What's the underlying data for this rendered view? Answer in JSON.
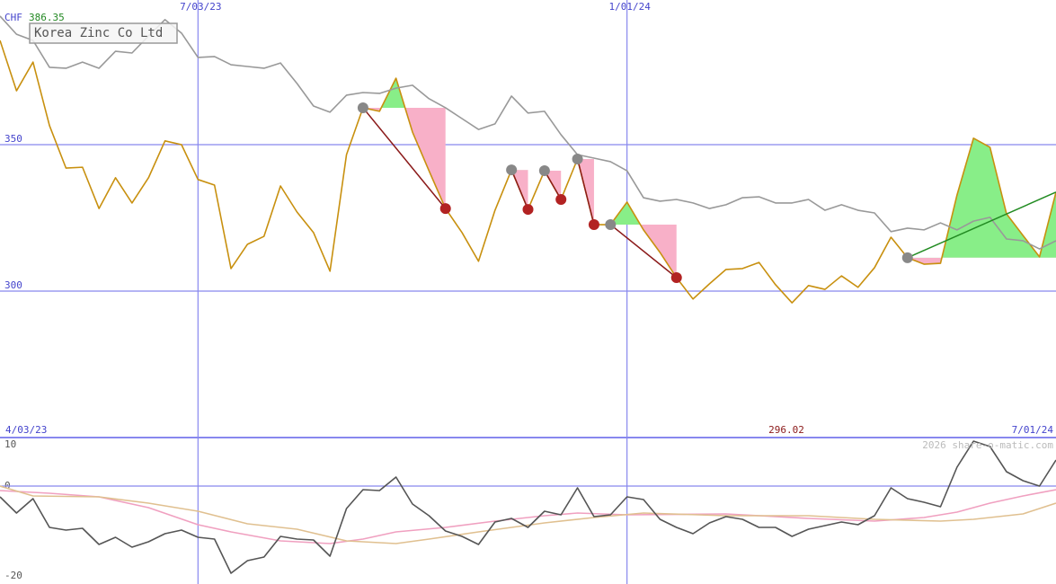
{
  "chart_data": [
    {
      "type": "line",
      "title": "Korea Zinc Co Ltd",
      "currency": "CHF",
      "price_label": 386.35,
      "low_label": 296.02,
      "x": [
        0,
        1,
        2,
        3,
        4,
        5,
        6,
        7,
        8,
        9,
        10,
        11,
        12,
        13,
        14,
        15,
        16,
        17,
        18,
        19,
        20,
        21,
        22,
        23,
        24,
        25,
        26,
        27,
        28,
        29,
        30,
        31,
        32,
        33,
        34,
        35,
        36,
        37,
        38,
        39,
        40,
        41,
        42,
        43,
        44,
        45,
        46,
        47,
        48,
        49,
        50,
        51,
        52,
        53,
        54,
        55,
        56,
        57,
        58,
        59,
        60,
        61,
        62,
        63,
        64
      ],
      "xlim": [
        0,
        64
      ],
      "xticks": [
        {
          "value": 12,
          "label": "7/03/23"
        },
        {
          "value": 38,
          "label": "1/01/24"
        }
      ],
      "ylim": [
        250.0,
        399.4
      ],
      "yticks": [
        300,
        350
      ],
      "grid": true,
      "series": [
        {
          "color": "#c8900f",
          "values": [
            385.6,
            368.4,
            378.2,
            356.5,
            342.0,
            342.3,
            328.2,
            338.7,
            330.1,
            338.7,
            351.3,
            350.0,
            338.1,
            336.2,
            307.7,
            316.0,
            318.7,
            335.9,
            327.0,
            320.0,
            306.8,
            346.6,
            362.6,
            361.4,
            372.7,
            354.3,
            341.1,
            328.2,
            320.0,
            310.2,
            327.6,
            341.4,
            327.9,
            341.1,
            331.3,
            345.1,
            322.7,
            322.7,
            330.4,
            320.9,
            313.2,
            304.6,
            297.3,
            302.5,
            307.4,
            307.7,
            309.8,
            302.2,
            296.0,
            301.9,
            300.6,
            305.2,
            301.3,
            308.0,
            318.4,
            311.4,
            309.2,
            309.5,
            332.8,
            352.2,
            349.1,
            326.4,
            319.0,
            311.7,
            333.8
          ]
        },
        {
          "color": "#999999",
          "values": [
            393.9,
            387.7,
            385.6,
            376.4,
            376.1,
            378.2,
            376.1,
            381.9,
            381.3,
            387.1,
            392.7,
            388.1,
            379.8,
            380.1,
            377.3,
            376.7,
            376.1,
            377.9,
            370.9,
            363.2,
            361.1,
            366.9,
            367.8,
            367.5,
            369.3,
            370.3,
            365.7,
            362.6,
            358.9,
            355.2,
            357.1,
            366.6,
            360.8,
            361.4,
            353.4,
            346.6,
            345.4,
            344.2,
            341.1,
            331.9,
            330.7,
            331.3,
            330.1,
            328.2,
            329.5,
            331.9,
            332.2,
            330.1,
            330.1,
            331.3,
            327.6,
            329.5,
            327.6,
            326.7,
            320.3,
            321.5,
            320.9,
            323.3,
            320.9,
            323.9,
            325.2,
            317.8,
            317.2,
            314.4,
            317.2
          ]
        }
      ],
      "patterns": [
        {
          "start": 22,
          "end": 27,
          "color": "#8b1a1a"
        },
        {
          "start": 31,
          "end": 32,
          "color": "#8b1a1a"
        },
        {
          "start": 33,
          "end": 34,
          "color": "#8b1a1a"
        },
        {
          "start": 35,
          "end": 36,
          "color": "#8b1a1a"
        },
        {
          "start": 37,
          "end": 41,
          "color": "#8b1a1a"
        },
        {
          "start": 55,
          "end": 64,
          "color": "#228b22"
        }
      ]
    },
    {
      "type": "line",
      "watermark": "2026 share-o-matic.com",
      "xlim": [
        0,
        64
      ],
      "xticks": [
        {
          "value": 0,
          "label": "4/03/23"
        },
        {
          "value": 64,
          "label": "7/01/24"
        }
      ],
      "ylim": [
        -21.8,
        10.8
      ],
      "yticks": [
        -20,
        0,
        10
      ],
      "zero_line": true,
      "series": [
        {
          "color": "#f0a0c0",
          "x": [
            0,
            3,
            6,
            9,
            12,
            14,
            17,
            20,
            22,
            24,
            27,
            30,
            33,
            35,
            38,
            44,
            49,
            53,
            56,
            58,
            60,
            62,
            64
          ],
          "values": [
            -1,
            -1.6,
            -2.4,
            -4.8,
            -8.6,
            -10.2,
            -12.2,
            -12.8,
            -11.8,
            -10.2,
            -9.2,
            -7.8,
            -6.6,
            -6,
            -6.4,
            -6.2,
            -7.2,
            -7.8,
            -7,
            -5.8,
            -3.8,
            -2.2,
            -0.8
          ]
        },
        {
          "color": "#e0c090",
          "x": [
            0,
            2,
            6,
            9,
            12,
            15,
            18,
            21,
            24,
            26,
            29,
            33,
            36,
            39,
            44,
            49,
            53,
            57,
            59,
            62,
            64
          ],
          "values": [
            0,
            -2.2,
            -2.4,
            -3.8,
            -5.6,
            -8.4,
            -9.6,
            -12.2,
            -12.8,
            -11.8,
            -10.2,
            -8.2,
            -7,
            -6,
            -6.6,
            -6.6,
            -7.4,
            -7.8,
            -7.4,
            -6.2,
            -3.8
          ]
        },
        {
          "color": "#555555",
          "x": [
            0,
            1,
            2,
            3,
            4,
            5,
            6,
            7,
            8,
            9,
            10,
            11,
            12,
            13,
            14,
            15,
            16,
            17,
            18,
            19,
            20,
            21,
            22,
            23,
            24,
            25,
            26,
            27,
            28,
            29,
            30,
            31,
            32,
            33,
            34,
            35,
            36,
            37,
            38,
            39,
            40,
            41,
            42,
            43,
            44,
            45,
            46,
            47,
            48,
            49,
            50,
            51,
            52,
            53,
            54,
            55,
            56,
            57,
            58,
            59,
            60,
            61,
            62,
            63,
            64
          ],
          "values": [
            -2.4,
            -6,
            -2.8,
            -9.2,
            -9.8,
            -9.4,
            -13,
            -11.4,
            -13.6,
            -12.4,
            -10.6,
            -9.8,
            -11.4,
            -11.8,
            -19.4,
            -16.6,
            -15.8,
            -11.2,
            -11.8,
            -12,
            -15.6,
            -5,
            -0.8,
            -1,
            2,
            -4,
            -6.6,
            -10,
            -11.2,
            -13,
            -8,
            -7.2,
            -9.2,
            -5.6,
            -6.4,
            -0.4,
            -6.8,
            -6.4,
            -2.4,
            -3,
            -7.4,
            -9.2,
            -10.6,
            -8.2,
            -6.8,
            -7.4,
            -9.2,
            -9.2,
            -11.2,
            -9.6,
            -8.8,
            -8,
            -8.6,
            -6.6,
            -0.4,
            -2.8,
            -3.6,
            -4.6,
            4.2,
            10,
            8.8,
            3.2,
            1.2,
            0,
            5.8
          ]
        }
      ]
    }
  ]
}
